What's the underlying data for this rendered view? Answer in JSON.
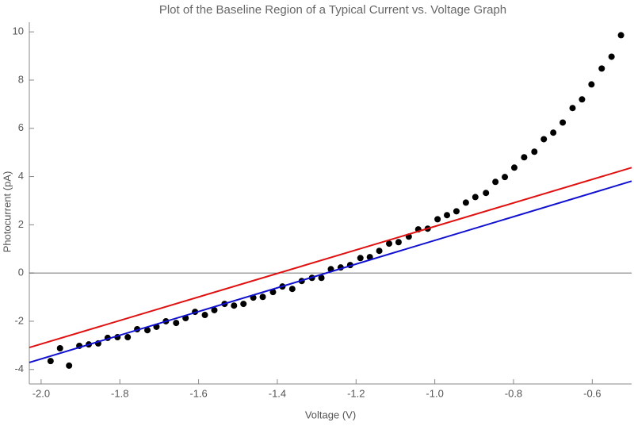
{
  "chart_data": {
    "type": "scatter",
    "title": "Plot of the Baseline Region of a Typical Current vs. Voltage Graph",
    "x_label": "Voltage (V)",
    "y_label": "Photocurrent (pA)",
    "xlim": [
      -2.03,
      -0.5
    ],
    "ylim": [
      -4.6,
      10.4
    ],
    "xticks": [
      {
        "value": -2.0,
        "label": "-2.0"
      },
      -1.8,
      -1.6,
      -1.4,
      -1.2,
      {
        "value": -1.0,
        "label": "-1.0"
      },
      -0.8,
      -0.6
    ],
    "yticks": [
      -4,
      -2,
      0,
      2,
      4,
      6,
      8,
      10
    ],
    "series": [
      {
        "kind": "markers",
        "color": "#000000",
        "x": [
          -1.976,
          -1.952,
          -1.929,
          -1.903,
          -1.879,
          -1.855,
          -1.831,
          -1.806,
          -1.78,
          -1.756,
          -1.73,
          -1.707,
          -1.683,
          -1.657,
          -1.633,
          -1.609,
          -1.584,
          -1.56,
          -1.534,
          -1.51,
          -1.486,
          -1.461,
          -1.437,
          -1.411,
          -1.387,
          -1.362,
          -1.338,
          -1.312,
          -1.288,
          -1.264,
          -1.239,
          -1.215,
          -1.189,
          -1.165,
          -1.141,
          -1.116,
          -1.092,
          -1.066,
          -1.042,
          -1.018,
          -0.993,
          -0.969,
          -0.945,
          -0.921,
          -0.897,
          -0.87,
          -0.846,
          -0.822,
          -0.798,
          -0.773,
          -0.747,
          -0.723,
          -0.699,
          -0.675,
          -0.65,
          -0.626,
          -0.602,
          -0.576,
          -0.551,
          -0.527
        ],
        "values": [
          -3.65,
          -3.12,
          -3.84,
          -3.02,
          -2.96,
          -2.92,
          -2.69,
          -2.66,
          -2.66,
          -2.33,
          -2.37,
          -2.23,
          -2.0,
          -2.07,
          -1.87,
          -1.61,
          -1.74,
          -1.54,
          -1.28,
          -1.35,
          -1.28,
          -1.02,
          -0.99,
          -0.79,
          -0.56,
          -0.66,
          -0.33,
          -0.2,
          -0.2,
          0.16,
          0.23,
          0.33,
          0.62,
          0.66,
          0.92,
          1.22,
          1.28,
          1.51,
          1.81,
          1.84,
          2.23,
          2.4,
          2.56,
          2.92,
          3.15,
          3.32,
          3.78,
          3.98,
          4.37,
          4.8,
          5.03,
          5.55,
          5.82,
          6.24,
          6.84,
          7.2,
          7.82,
          8.48,
          8.97,
          9.86
        ]
      },
      {
        "kind": "line",
        "color": "#e01010",
        "x": [
          -2.03,
          -0.5
        ],
        "values": [
          -3.09,
          4.37
        ]
      },
      {
        "kind": "line",
        "color": "#1010d0",
        "x": [
          -2.03,
          -0.5
        ],
        "values": [
          -3.71,
          3.81
        ]
      }
    ]
  }
}
